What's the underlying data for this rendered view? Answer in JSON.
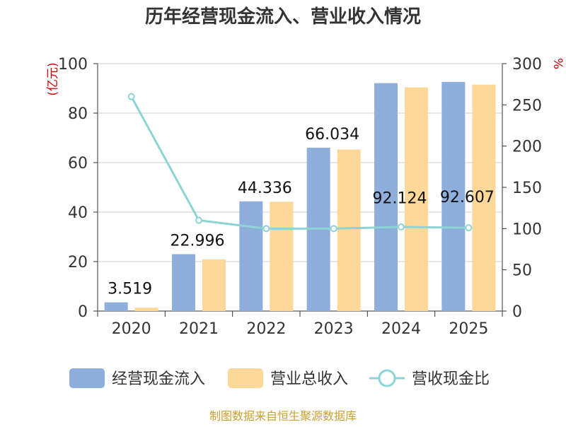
{
  "chart_data": {
    "type": "bar",
    "title": "历年经营现金流入、营业收入情况",
    "y_left_label": "(亿元)",
    "y_right_label": "%",
    "categories": [
      "2020",
      "2021",
      "2022",
      "2023",
      "2024",
      "2025"
    ],
    "y_left_ticks": [
      0,
      20,
      40,
      60,
      80,
      100
    ],
    "y_right_ticks": [
      0,
      50,
      100,
      150,
      200,
      250,
      300
    ],
    "ylim_left": [
      0,
      100
    ],
    "ylim_right": [
      0,
      300
    ],
    "grid": true,
    "legend_position": "bottom",
    "series": [
      {
        "name": "经营现金流入",
        "kind": "bar",
        "axis": "left",
        "color": "#8eaedb",
        "values": [
          3.519,
          22.996,
          44.336,
          66.034,
          92.124,
          92.607
        ],
        "labels": [
          "3.519",
          "22.996",
          "44.336",
          "66.034",
          "92.124",
          "92.607"
        ]
      },
      {
        "name": "营业总收入",
        "kind": "bar",
        "axis": "left",
        "color": "#fed898",
        "values": [
          1.4,
          20.9,
          44.2,
          65.3,
          90.4,
          91.5
        ]
      },
      {
        "name": "营收现金比",
        "kind": "line",
        "axis": "right",
        "color": "#8dd4d4",
        "values": [
          260,
          110,
          100,
          100,
          102,
          101
        ]
      }
    ],
    "source": "制图数据来自恒生聚源数据库"
  },
  "colors": {
    "axis_label": "#d10000",
    "source": "#c8a030",
    "text": "#333333",
    "grid": "#cccccc"
  }
}
